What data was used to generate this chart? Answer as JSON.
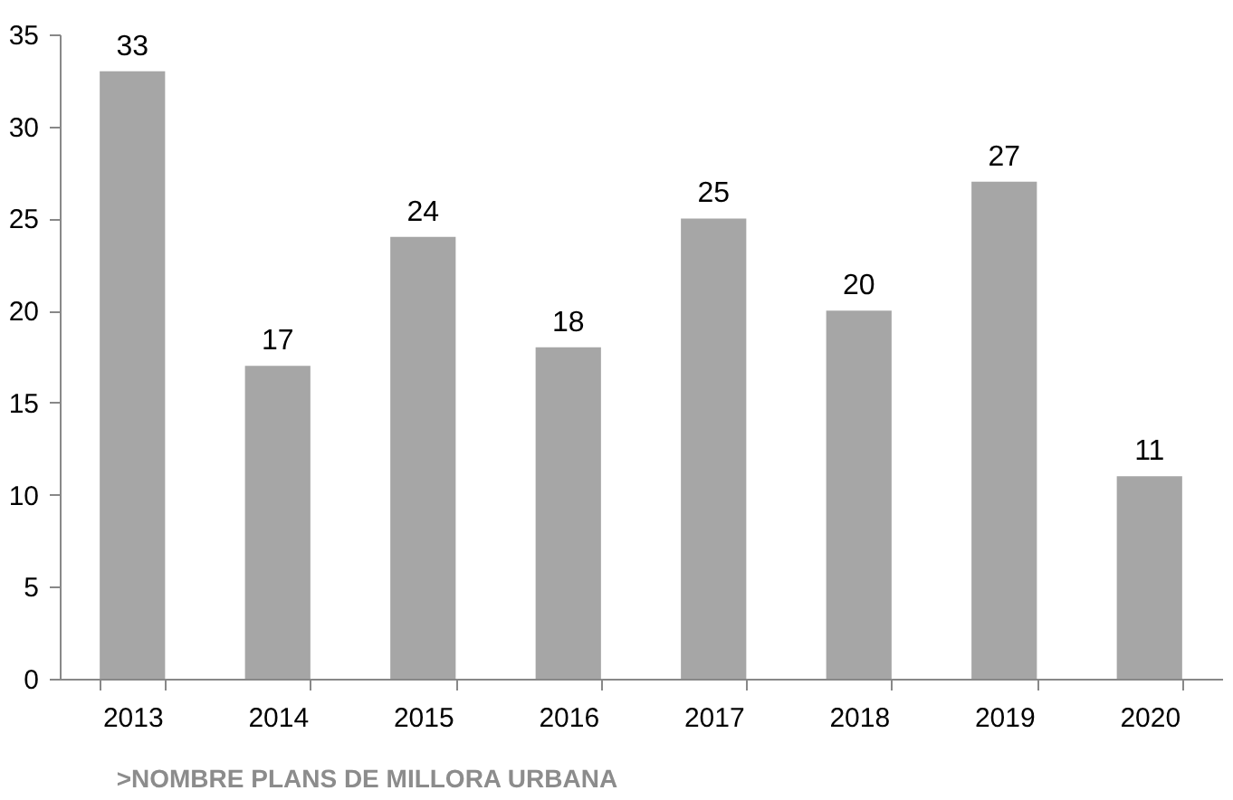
{
  "chart_data": {
    "type": "bar",
    "title": ">NOMBRE PLANS DE MILLORA URBANA",
    "categories": [
      "2013",
      "2014",
      "2015",
      "2016",
      "2017",
      "2018",
      "2019",
      "2020"
    ],
    "values": [
      33,
      17,
      24,
      18,
      25,
      20,
      27,
      11
    ],
    "color": "#a6a6a6",
    "ylim": [
      0,
      35
    ],
    "yticks": [
      0,
      5,
      10,
      15,
      20,
      25,
      30,
      35
    ],
    "grid": false,
    "data_labels": true
  }
}
